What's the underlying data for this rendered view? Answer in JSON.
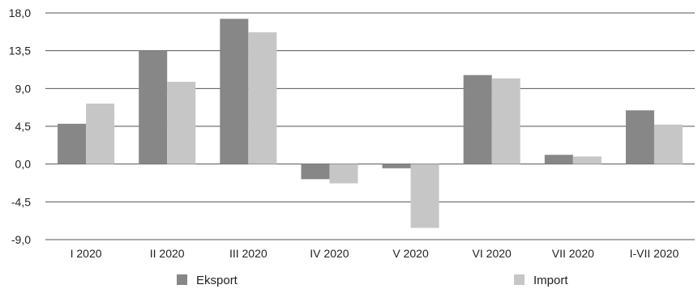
{
  "chart_data": {
    "type": "bar",
    "categories": [
      "I 2020",
      "II 2020",
      "III 2020",
      "IV 2020",
      "V 2020",
      "VI 2020",
      "VII 2020",
      "I-VII 2020"
    ],
    "series": [
      {
        "name": "Eksport",
        "color": "#878787",
        "values": [
          4.8,
          13.5,
          17.3,
          -1.8,
          -0.5,
          10.6,
          1.1,
          6.4
        ]
      },
      {
        "name": "Import",
        "color": "#c6c6c6",
        "values": [
          7.2,
          9.8,
          15.7,
          -2.3,
          -7.6,
          10.2,
          0.9,
          4.7
        ]
      }
    ],
    "yticks": [
      "18,0",
      "13,5",
      "9,0",
      "4,5",
      "0,0",
      "-4,5",
      "-9,0"
    ],
    "ytick_values": [
      18,
      13.5,
      9,
      4.5,
      0,
      -4.5,
      -9
    ],
    "ylim": [
      -9,
      18
    ],
    "grid": true,
    "legend": "bottom",
    "title": "",
    "xlabel": "",
    "ylabel": ""
  }
}
